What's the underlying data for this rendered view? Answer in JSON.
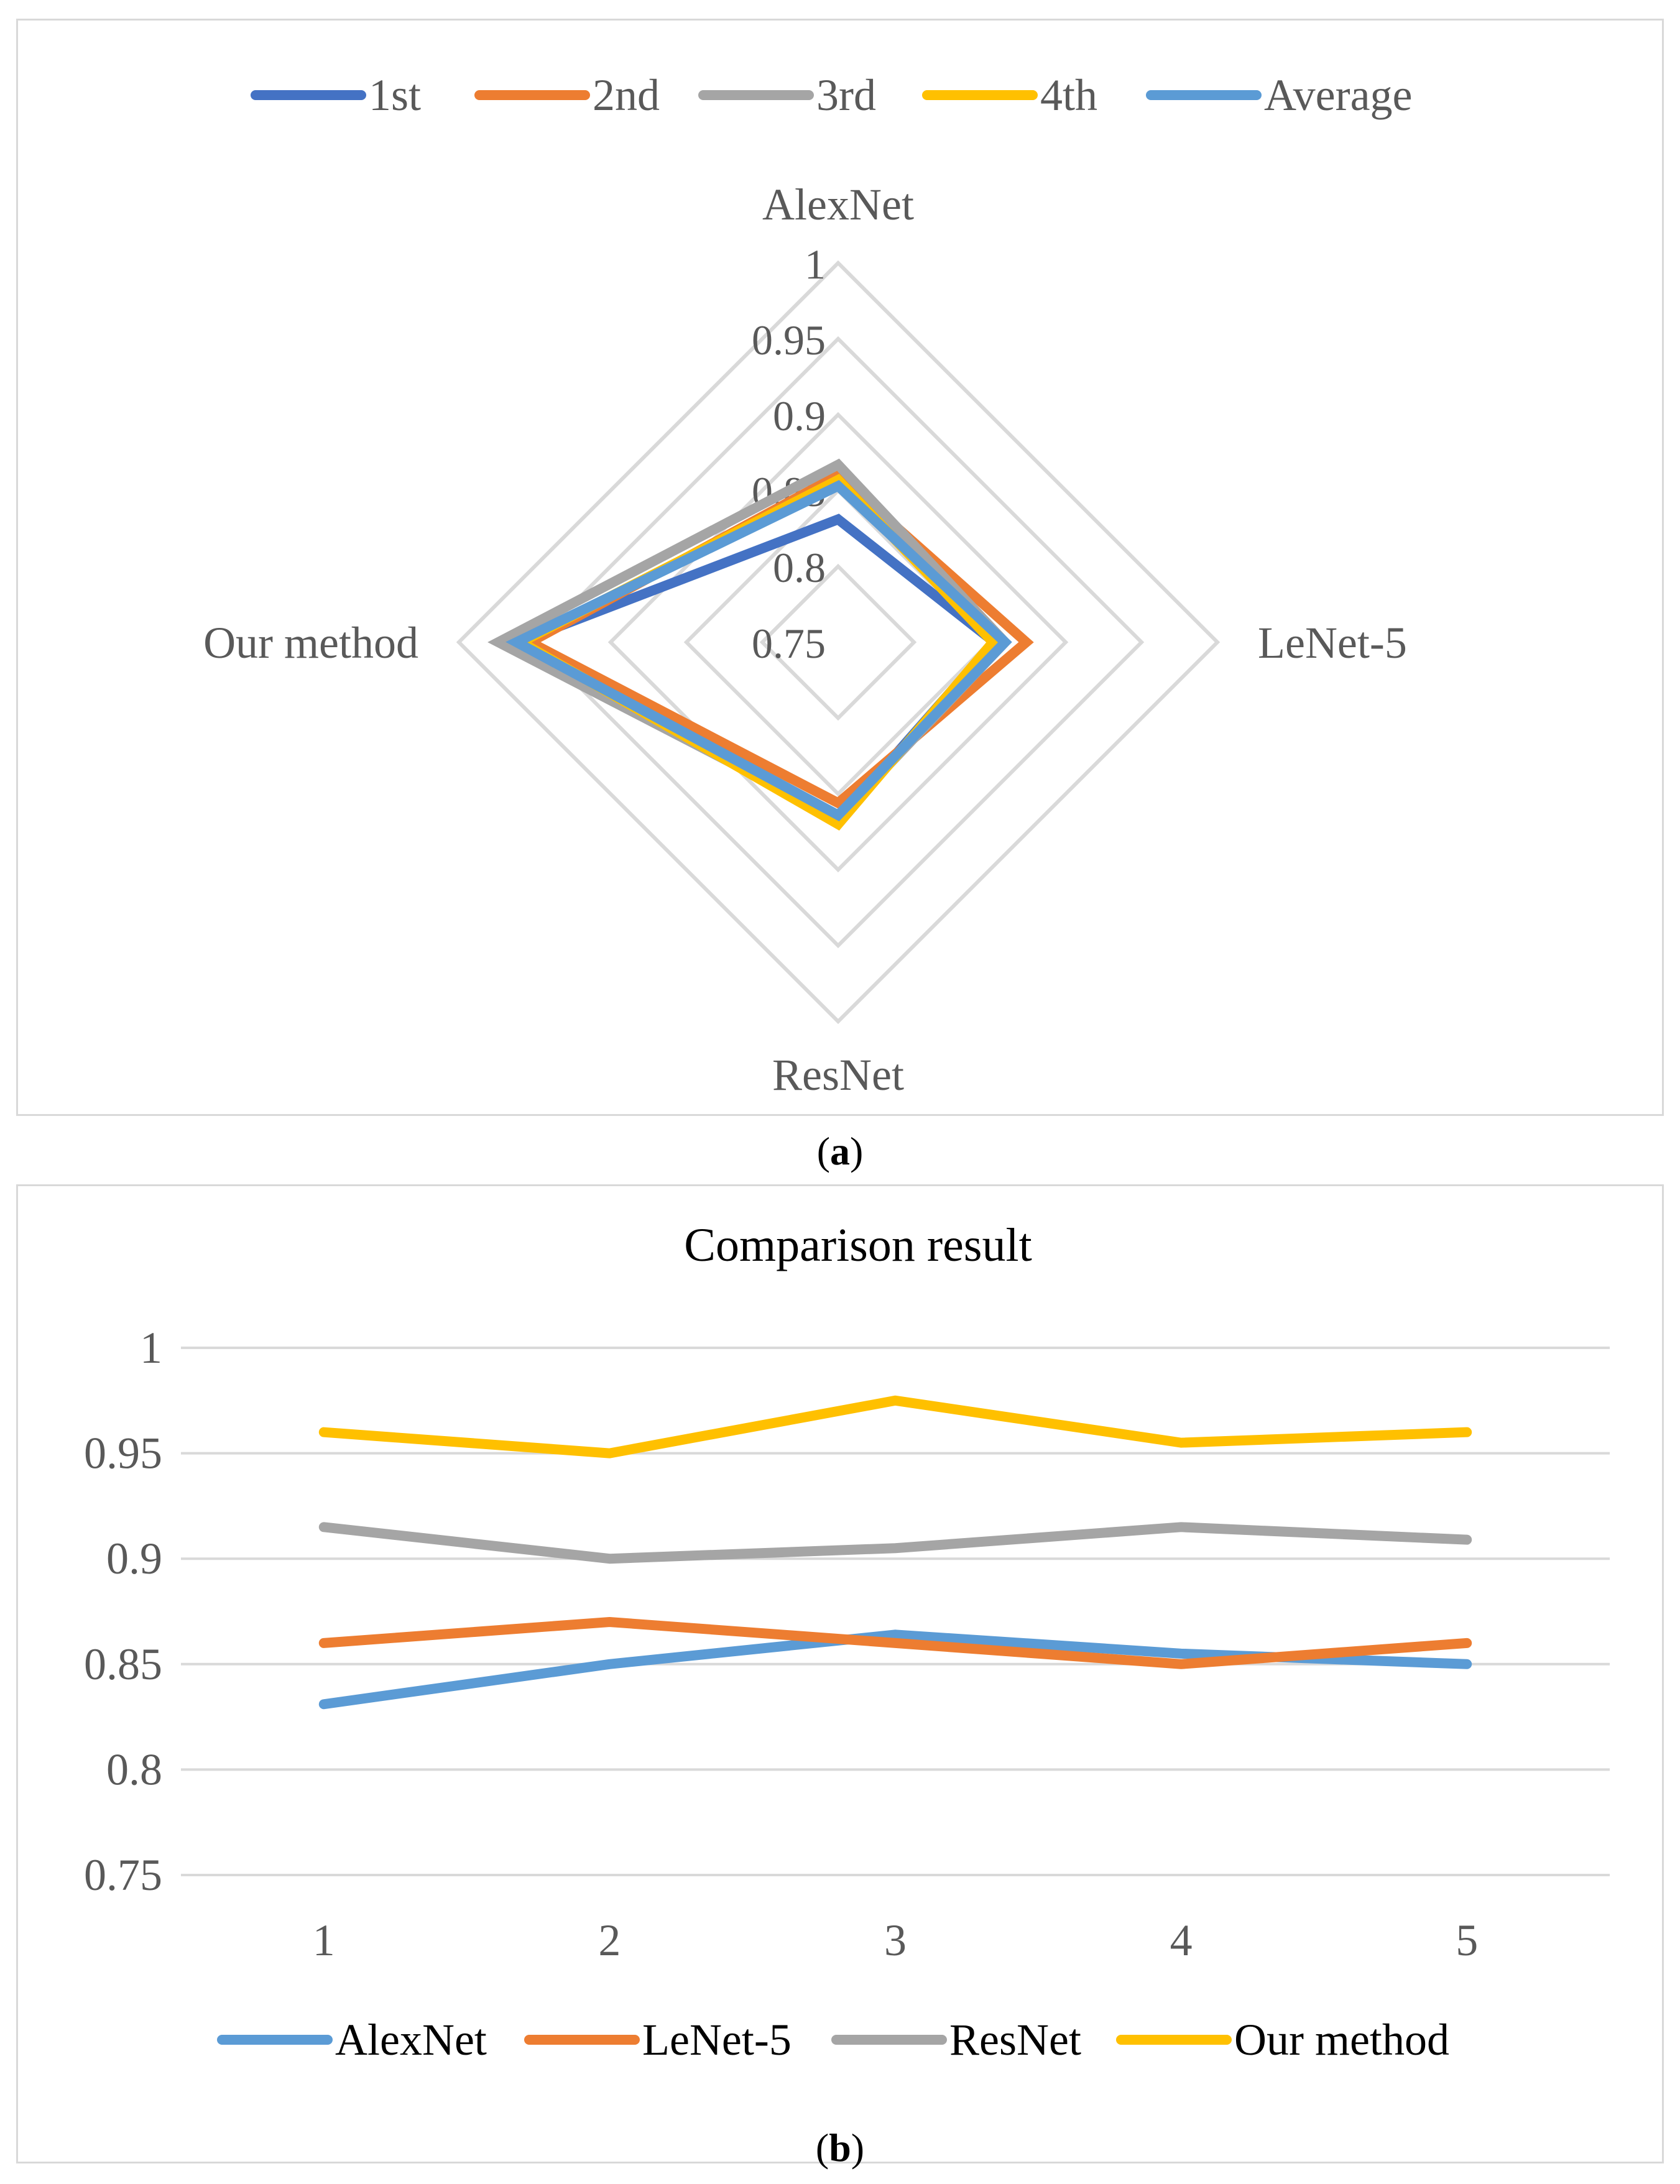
{
  "captions": {
    "a_prefix": "(",
    "a_letter": "a",
    "a_suffix": ")",
    "b_prefix": "(",
    "b_letter": "b",
    "b_suffix": ")"
  },
  "chart_data": [
    {
      "type": "radar",
      "axes": [
        "AlexNet",
        "LeNet-5",
        "ResNet",
        "Our method"
      ],
      "ticks": [
        0.75,
        0.8,
        0.85,
        0.9,
        0.95,
        1
      ],
      "tick_labels": [
        "0.75",
        "0.8",
        "0.85",
        "0.9",
        "0.95",
        "1"
      ],
      "range": [
        0.75,
        1
      ],
      "legend_position": "top",
      "series": [
        {
          "name": "1st",
          "color": "#4472c4",
          "values": [
            0.831,
            0.853,
            0.867,
            0.961
          ]
        },
        {
          "name": "2nd",
          "color": "#ed7d31",
          "values": [
            0.86,
            0.874,
            0.856,
            0.953
          ]
        },
        {
          "name": "3rd",
          "color": "#a5a5a5",
          "values": [
            0.867,
            0.86,
            0.866,
            0.974
          ]
        },
        {
          "name": "4th",
          "color": "#ffc000",
          "values": [
            0.857,
            0.852,
            0.87,
            0.959
          ]
        },
        {
          "name": "Average",
          "color": "#5b9bd5",
          "values": [
            0.853,
            0.86,
            0.864,
            0.962
          ]
        }
      ]
    },
    {
      "type": "line",
      "title": "Comparison result",
      "categories": [
        "1",
        "2",
        "3",
        "4",
        "5"
      ],
      "ylim": [
        0.75,
        1
      ],
      "yticks": [
        0.75,
        0.8,
        0.85,
        0.9,
        0.95,
        1
      ],
      "ytick_labels": [
        "0.75",
        "0.8",
        "0.85",
        "0.9",
        "0.95",
        "1"
      ],
      "grid": true,
      "legend_position": "bottom",
      "series": [
        {
          "name": "AlexNet",
          "color": "#5b9bd5",
          "values": [
            0.831,
            0.85,
            0.864,
            0.855,
            0.85
          ]
        },
        {
          "name": "LeNet-5",
          "color": "#ed7d31",
          "values": [
            0.86,
            0.87,
            0.86,
            0.85,
            0.86
          ]
        },
        {
          "name": "ResNet",
          "color": "#a5a5a5",
          "values": [
            0.915,
            0.9,
            0.905,
            0.915,
            0.909
          ]
        },
        {
          "name": "Our method",
          "color": "#ffc000",
          "values": [
            0.96,
            0.95,
            0.975,
            0.955,
            0.96
          ]
        }
      ]
    }
  ]
}
